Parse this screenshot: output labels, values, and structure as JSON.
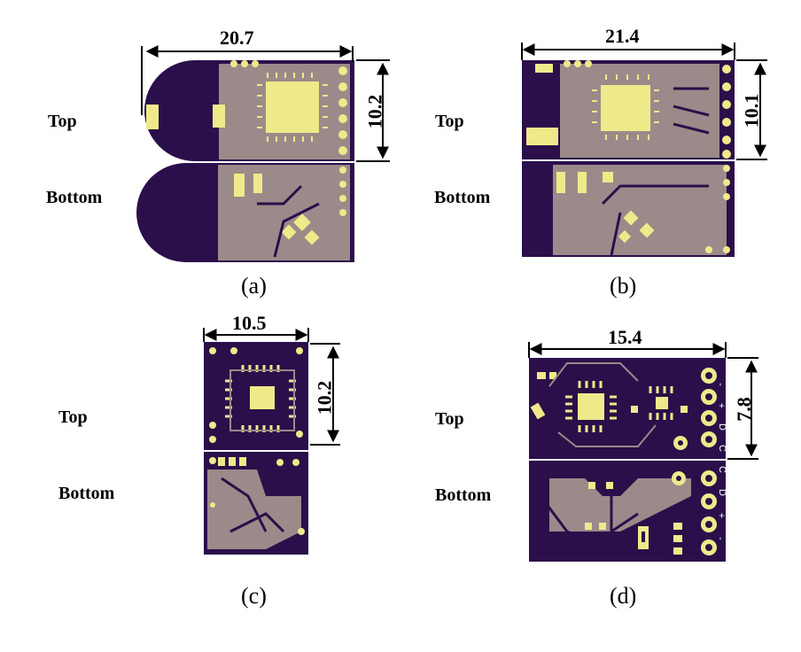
{
  "labels": {
    "top": "Top",
    "bottom": "Bottom"
  },
  "panels": {
    "a": {
      "caption": "(a)",
      "width_dim": "20.7",
      "height_dim": "10.2"
    },
    "b": {
      "caption": "(b)",
      "width_dim": "21.4",
      "height_dim": "10.1"
    },
    "c": {
      "caption": "(c)",
      "width_dim": "10.5",
      "height_dim": "10.2"
    },
    "d": {
      "caption": "(d)",
      "width_dim": "15.4",
      "height_dim": "7.8",
      "pins_top": [
        "-",
        "+",
        "D",
        "C"
      ],
      "pins_bottom": [
        "C",
        "D",
        "+",
        "-"
      ]
    }
  },
  "colors": {
    "board": "#2a0f4a",
    "pad": "#efe98a",
    "copper": "#9b8a8a",
    "line": "#000000"
  }
}
